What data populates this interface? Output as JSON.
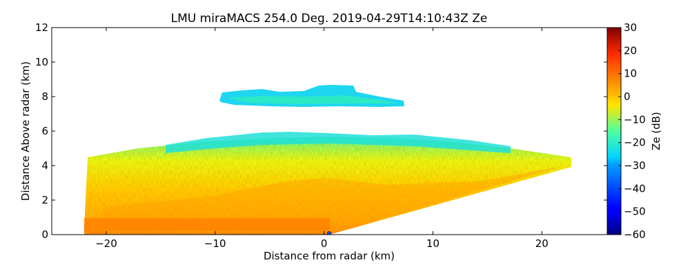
{
  "chart_data": {
    "type": "heatmap",
    "title": "LMU miraMACS 254.0 Deg. 2019-04-29T14:10:43Z  Ze",
    "xlabel": "Distance from radar (km)",
    "ylabel": "Distance Above radar  (km)",
    "xlim": [
      -25,
      26
    ],
    "ylim": [
      0,
      12
    ],
    "xticks": [
      -20,
      -10,
      0,
      10,
      20
    ],
    "xtick_labels": [
      "−20",
      "−10",
      "0",
      "10",
      "20"
    ],
    "yticks": [
      0,
      2,
      4,
      6,
      8,
      10,
      12
    ],
    "ytick_labels": [
      "0",
      "2",
      "4",
      "6",
      "8",
      "10",
      "12"
    ],
    "grid": false,
    "colorbar": {
      "label": "Ze (dB)",
      "colormap": "jet",
      "min": -60,
      "max": 30,
      "ticks": [
        30,
        20,
        10,
        0,
        -10,
        -20,
        -30,
        -40,
        -50,
        -60
      ],
      "tick_labels": [
        "30",
        "20",
        "10",
        "0",
        "−10",
        "−20",
        "−30",
        "−40",
        "−50",
        "−60"
      ]
    },
    "features": [
      {
        "name": "upper-cloud-layer",
        "x_range": [
          -10,
          7
        ],
        "y_range": [
          7.5,
          8.7
        ],
        "ze_range_db": [
          -35,
          -25
        ]
      },
      {
        "name": "cloud-top-fringe",
        "x_range": [
          -16,
          17
        ],
        "y_range": [
          4.8,
          5.9
        ],
        "ze_range_db": [
          -35,
          -20
        ]
      },
      {
        "name": "main-precip-layer",
        "x_range": [
          -22,
          22
        ],
        "y_range": [
          0,
          5.0
        ],
        "ze_range_db": [
          -15,
          10
        ]
      },
      {
        "name": "core-near-ground",
        "x_range": [
          -22,
          -1
        ],
        "y_range": [
          0.2,
          0.9
        ],
        "ze_range_db": [
          8,
          15
        ]
      }
    ]
  }
}
